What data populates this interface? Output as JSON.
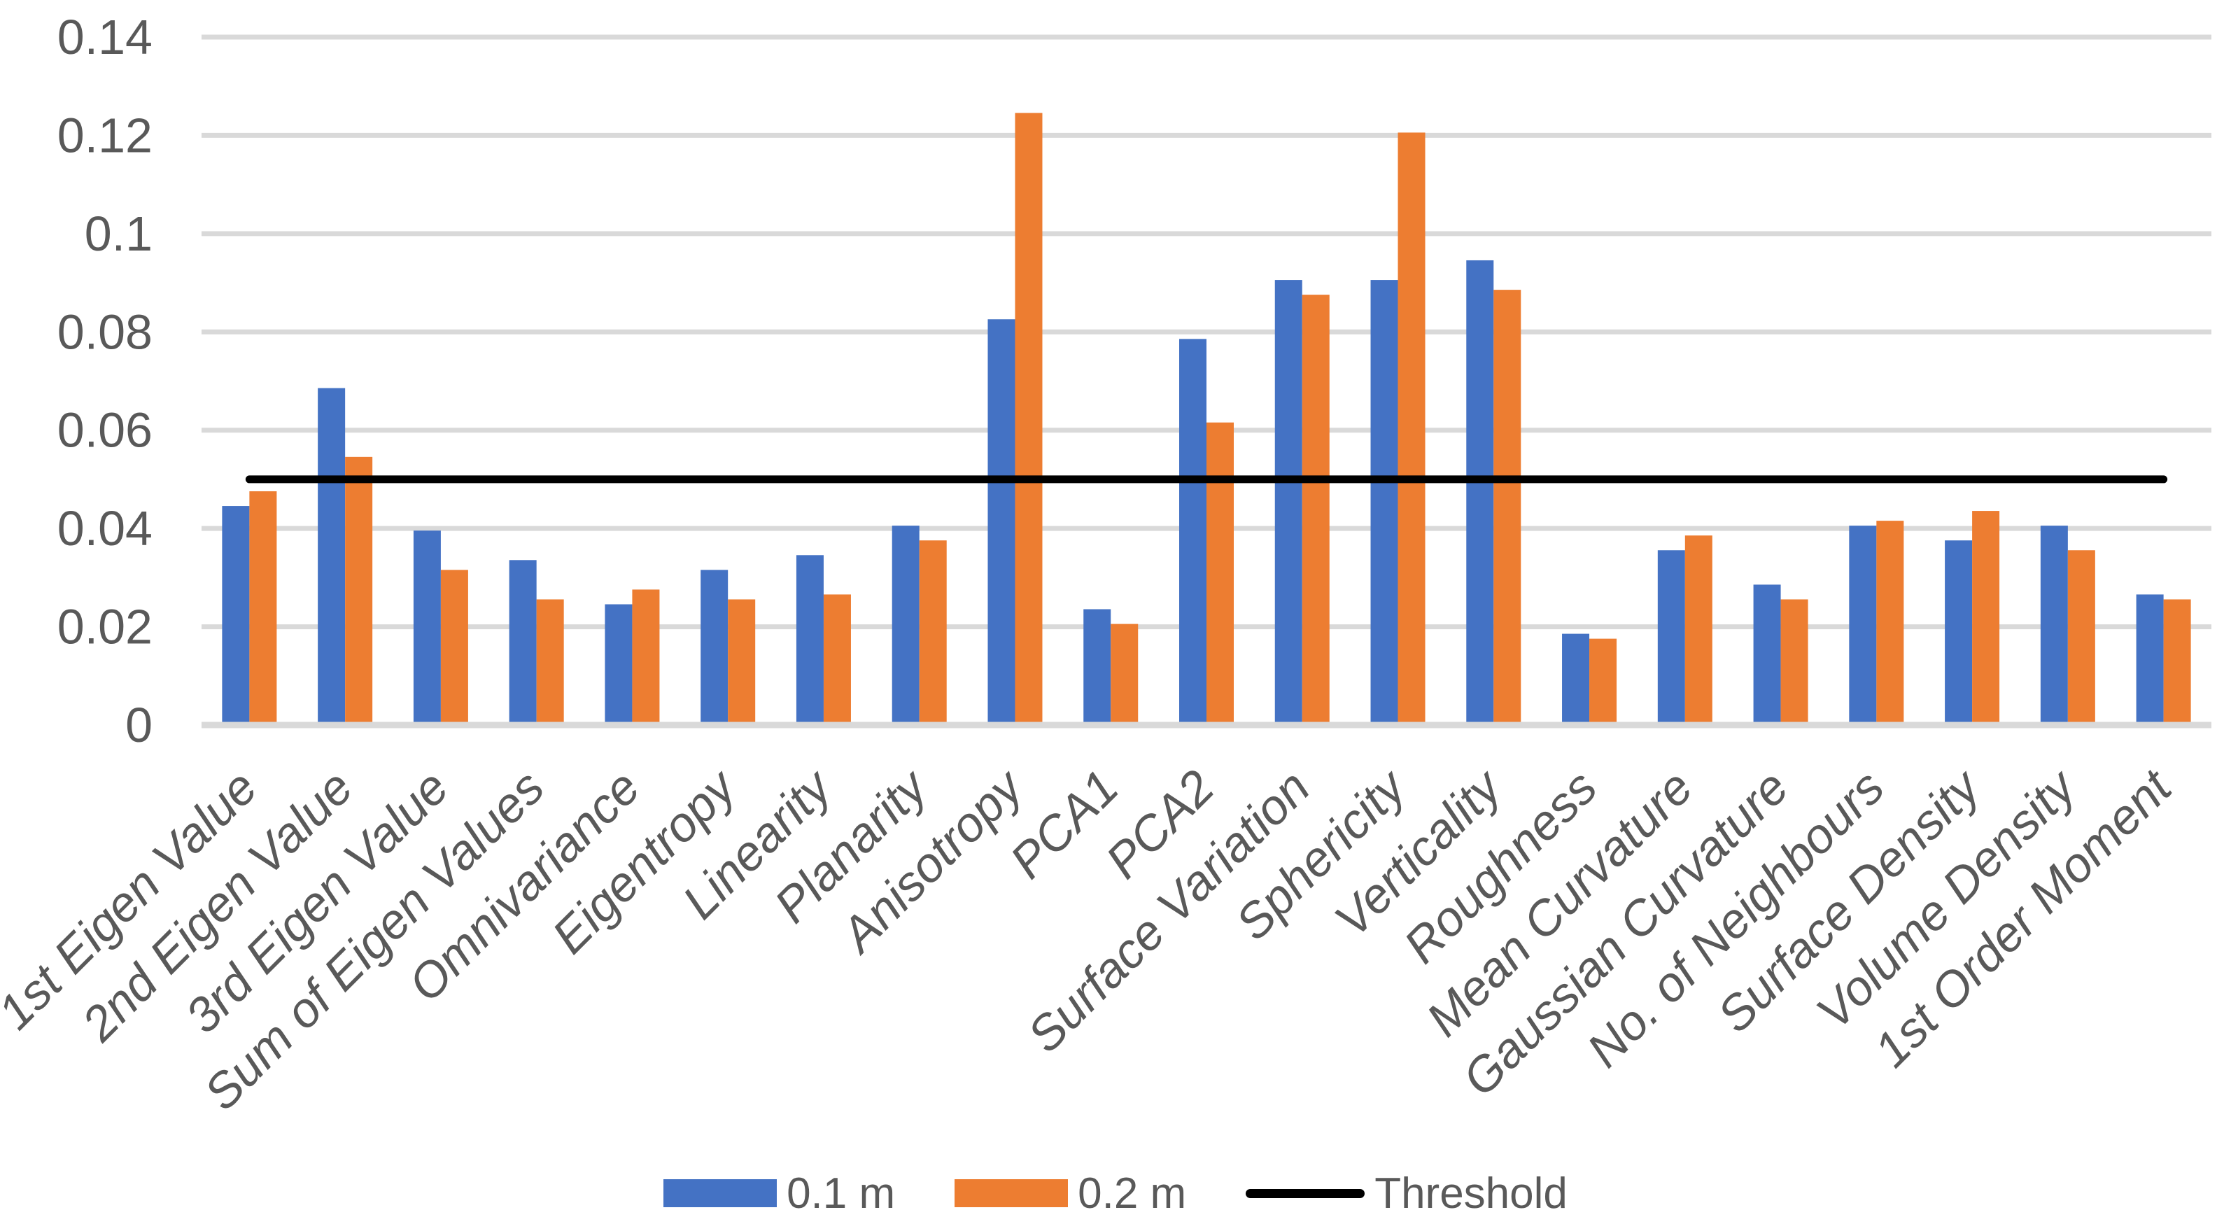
{
  "style": {
    "background": "#FFFFFF",
    "grid_color": "#D9D9D9",
    "axis_line_color": "#D9D9D9",
    "tick_label_color": "#595959",
    "category_label_color": "#595959",
    "legend_text_color": "#595959",
    "series_blue": "#4472C4",
    "series_orange": "#ED7D31",
    "threshold_black": "#000000"
  },
  "chart_data": {
    "type": "bar",
    "title": "",
    "xlabel": "",
    "ylabel": "",
    "categories": [
      "1st Eigen Value",
      "2nd Eigen Value",
      "3rd Eigen Value",
      "Sum of Eigen Values",
      "Omnivariance",
      "Eigentropy",
      "Linearity",
      "Planarity",
      "Anisotropy",
      "PCA1",
      "PCA2",
      "Surface Variation",
      "Sphericity",
      "Verticality",
      "Roughness",
      "Mean Curvature",
      "Gaussian Curvature",
      "No. of Neighbours",
      "Surface Density",
      "Volume Density",
      "1st Order Moment"
    ],
    "series": [
      {
        "name": "0.1 m",
        "color": "#4472C4",
        "values": [
          0.044,
          0.068,
          0.039,
          0.033,
          0.024,
          0.031,
          0.034,
          0.04,
          0.082,
          0.023,
          0.078,
          0.09,
          0.09,
          0.094,
          0.018,
          0.035,
          0.028,
          0.04,
          0.037,
          0.04,
          0.026
        ]
      },
      {
        "name": "0.2 m",
        "color": "#ED7D31",
        "values": [
          0.047,
          0.054,
          0.031,
          0.025,
          0.027,
          0.025,
          0.026,
          0.037,
          0.124,
          0.02,
          0.061,
          0.087,
          0.12,
          0.088,
          0.017,
          0.038,
          0.025,
          0.041,
          0.043,
          0.035,
          0.025
        ]
      }
    ],
    "threshold": {
      "label": "Threshold",
      "value": 0.05,
      "color": "#000000"
    },
    "ylim": [
      0,
      0.14
    ],
    "yticks": {
      "values": [
        0,
        0.02,
        0.04,
        0.06,
        0.08,
        0.1,
        0.12,
        0.14
      ],
      "labels": [
        "0",
        "0.02",
        "0.04",
        "0.06",
        "0.08",
        "0.1",
        "0.12",
        "0.14"
      ]
    },
    "grid": "horizontal",
    "legend_position": "bottom",
    "category_label_rotation_deg": -45
  },
  "legend": {
    "items": [
      {
        "label": "0.1 m",
        "swatch": "rect",
        "color": "#4472C4"
      },
      {
        "label": "0.2 m",
        "swatch": "rect",
        "color": "#ED7D31"
      },
      {
        "label": "Threshold",
        "swatch": "line",
        "color": "#000000"
      }
    ]
  }
}
